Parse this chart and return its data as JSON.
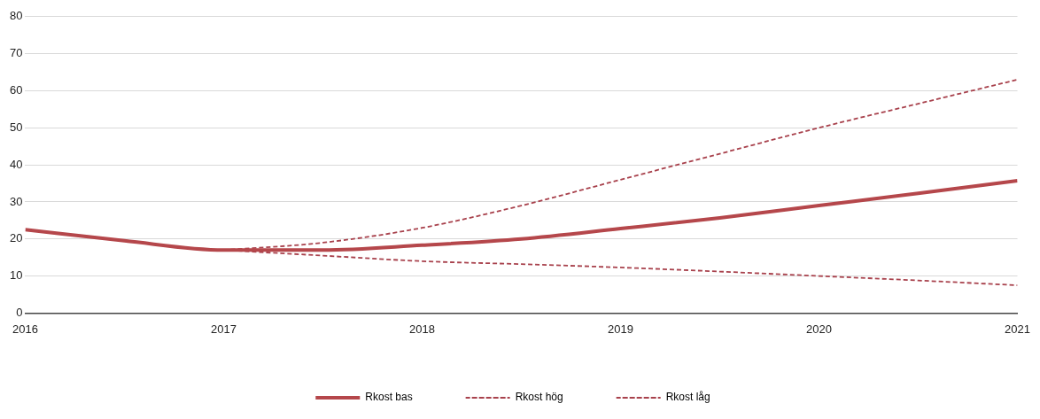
{
  "chart_data": {
    "type": "line",
    "xlim": [
      2016,
      2021
    ],
    "xticks": [
      2016,
      2017,
      2018,
      2019,
      2020,
      2021
    ],
    "ylim": [
      0,
      80
    ],
    "yticks": [
      0,
      10,
      20,
      30,
      40,
      50,
      60,
      70,
      80
    ],
    "grid": "y",
    "legend": "bottom",
    "marker": "none",
    "series": [
      {
        "name": "Rkost bas",
        "color": "#b5474b",
        "line_style": "solid",
        "x": [
          2016,
          2016.5,
          2017,
          2017.5,
          2018,
          2018.5,
          2019,
          2019.5,
          2020,
          2020.5,
          2021
        ],
        "values": [
          22.5,
          19.5,
          17,
          17,
          18.3,
          20,
          22.8,
          25.7,
          29,
          32.3,
          35.7
        ]
      },
      {
        "name": "Rkost hög",
        "color": "#a8414c",
        "line_style": "dashed",
        "x": [
          2017,
          2017.5,
          2018,
          2018.5,
          2019,
          2019.5,
          2020,
          2020.5,
          2021
        ],
        "values": [
          17,
          19,
          23,
          29,
          36,
          43,
          50,
          56.5,
          63
        ]
      },
      {
        "name": "Rkost låg",
        "color": "#a8414c",
        "line_style": "dashed",
        "x": [
          2017,
          2017.5,
          2018,
          2018.5,
          2019,
          2019.5,
          2020,
          2020.5,
          2021
        ],
        "values": [
          17,
          15.5,
          14,
          13.2,
          12.3,
          11.2,
          10,
          8.8,
          7.5
        ]
      }
    ]
  }
}
